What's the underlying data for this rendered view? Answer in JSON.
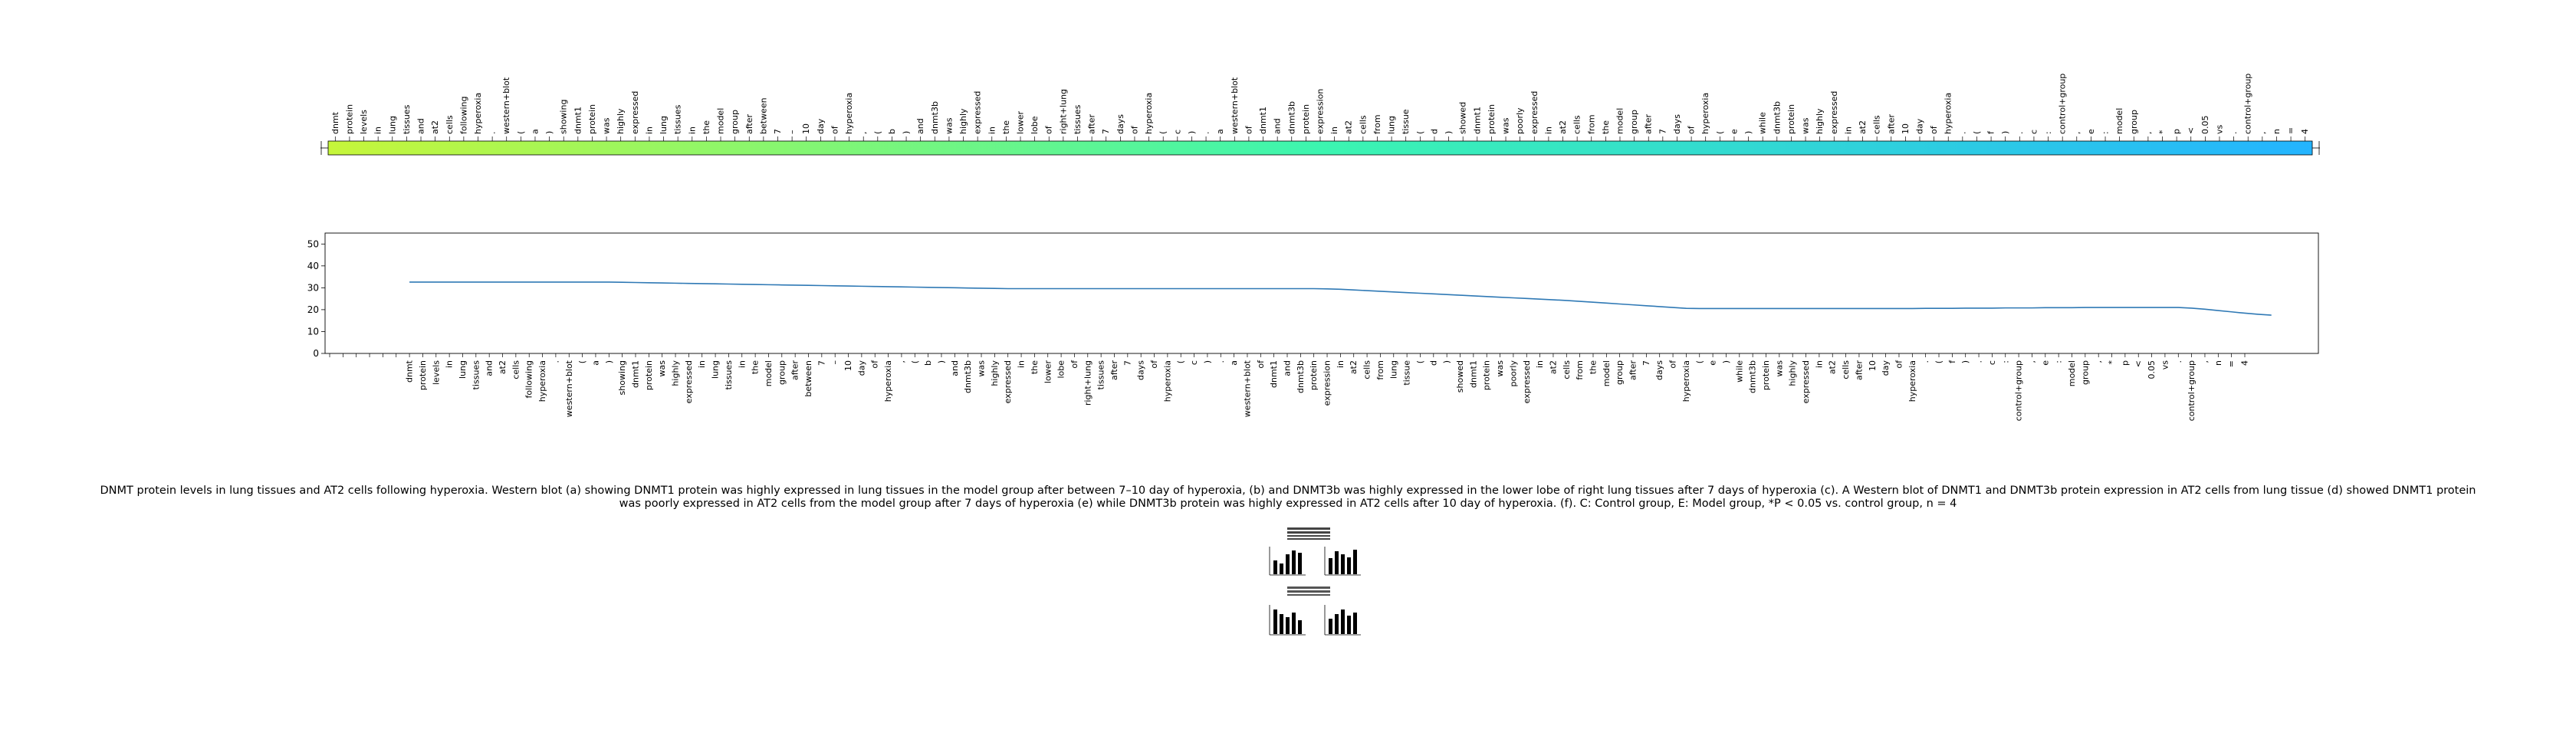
{
  "tokens": [
    "dnmt",
    "protein",
    "levels",
    "in",
    "lung",
    "tissues",
    "and",
    "at2",
    "cells",
    "following",
    "hyperoxia",
    ".",
    "western+blot",
    "(",
    "a",
    ")",
    "showing",
    "dnmt1",
    "protein",
    "was",
    "highly",
    "expressed",
    "in",
    "lung",
    "tissues",
    "in",
    "the",
    "model",
    "group",
    "after",
    "between",
    "7",
    "–",
    "10",
    "day",
    "of",
    "hyperoxia",
    ",",
    "(",
    "b",
    ")",
    "and",
    "dnmt3b",
    "was",
    "highly",
    "expressed",
    "in",
    "the",
    "lower",
    "lobe",
    "of",
    "right+lung",
    "tissues",
    "after",
    "7",
    "days",
    "of",
    "hyperoxia",
    "(",
    "c",
    ")",
    ".",
    "a",
    "western+blot",
    "of",
    "dnmt1",
    "and",
    "dnmt3b",
    "protein",
    "expression",
    "in",
    "at2",
    "cells",
    "from",
    "lung",
    "tissue",
    "(",
    "d",
    ")",
    "showed",
    "dnmt1",
    "protein",
    "was",
    "poorly",
    "expressed",
    "in",
    "at2",
    "cells",
    "from",
    "the",
    "model",
    "group",
    "after",
    "7",
    "days",
    "of",
    "hyperoxia",
    "(",
    "e",
    ")",
    "while",
    "dnmt3b",
    "protein",
    "was",
    "highly",
    "expressed",
    "in",
    "at2",
    "cells",
    "after",
    "10",
    "day",
    "of",
    "hyperoxia",
    ".",
    "(",
    "f",
    ")",
    ".",
    "c",
    ":",
    "control+group",
    ",",
    "e",
    ":",
    "model",
    "group",
    ",",
    "*",
    "p",
    "<",
    "0.05",
    "vs",
    ".",
    "control+group",
    ",",
    "n",
    "=",
    "4"
  ],
  "chart_data": {
    "type": "line",
    "ylim": [
      0,
      55
    ],
    "yticks": [
      0,
      10,
      20,
      30,
      40,
      50
    ],
    "x_start_index": 6,
    "y": [
      32.6,
      32.6,
      32.6,
      32.6,
      32.6,
      32.6,
      32.6,
      32.6,
      32.6,
      32.6,
      32.6,
      32.6,
      32.6,
      32.6,
      32.6,
      32.6,
      32.5,
      32.4,
      32.3,
      32.2,
      32.1,
      32.0,
      31.9,
      31.8,
      31.7,
      31.6,
      31.5,
      31.4,
      31.3,
      31.2,
      31.1,
      31.0,
      30.9,
      30.8,
      30.7,
      30.6,
      30.5,
      30.4,
      30.3,
      30.2,
      30.1,
      30.0,
      29.9,
      29.8,
      29.7,
      29.6,
      29.6,
      29.6,
      29.6,
      29.6,
      29.6,
      29.6,
      29.6,
      29.6,
      29.6,
      29.6,
      29.6,
      29.6,
      29.6,
      29.6,
      29.6,
      29.6,
      29.6,
      29.6,
      29.6,
      29.6,
      29.6,
      29.6,
      29.6,
      29.5,
      29.3,
      29.0,
      28.7,
      28.4,
      28.1,
      27.8,
      27.5,
      27.2,
      26.9,
      26.6,
      26.3,
      26.0,
      25.7,
      25.4,
      25.1,
      24.8,
      24.5,
      24.2,
      23.8,
      23.4,
      23.0,
      22.6,
      22.2,
      21.8,
      21.4,
      21.0,
      20.6,
      20.5,
      20.5,
      20.5,
      20.5,
      20.5,
      20.5,
      20.5,
      20.5,
      20.5,
      20.5,
      20.5,
      20.5,
      20.5,
      20.5,
      20.5,
      20.5,
      20.5,
      20.6,
      20.6,
      20.6,
      20.7,
      20.7,
      20.7,
      20.8,
      20.8,
      20.8,
      20.9,
      20.9,
      20.9,
      21.0,
      21.0,
      21.0,
      21.0,
      21.0,
      21.0,
      21.0,
      21.0,
      20.7,
      20.2,
      19.6,
      19.0,
      18.4,
      17.9,
      17.5
    ]
  },
  "caption": "DNMT protein levels in lung tissues and AT2 cells following hyperoxia. Western blot (a) showing DNMT1 protein was highly expressed in lung tissues in the model group after between 7–10 day of hyperoxia, (b) and DNMT3b was highly expressed in the lower lobe of right lung tissues after 7 days of hyperoxia (c). A Western blot of DNMT1 and DNMT3b protein expression in AT2 cells from lung tissue (d) showed DNMT1 protein was poorly expressed in AT2 cells from the model group after 7 days of hyperoxia (e) while DNMT3b protein was highly expressed in AT2 cells after 10 day of hyperoxia. (f). C: Control group, E: Model group, *P < 0.05 vs. control group, n = 4",
  "colors": {
    "heat_start": "#c6f63a",
    "heat_mid": "#3cf5b0",
    "heat_end": "#24b4ff",
    "line": "#2f79b5"
  }
}
